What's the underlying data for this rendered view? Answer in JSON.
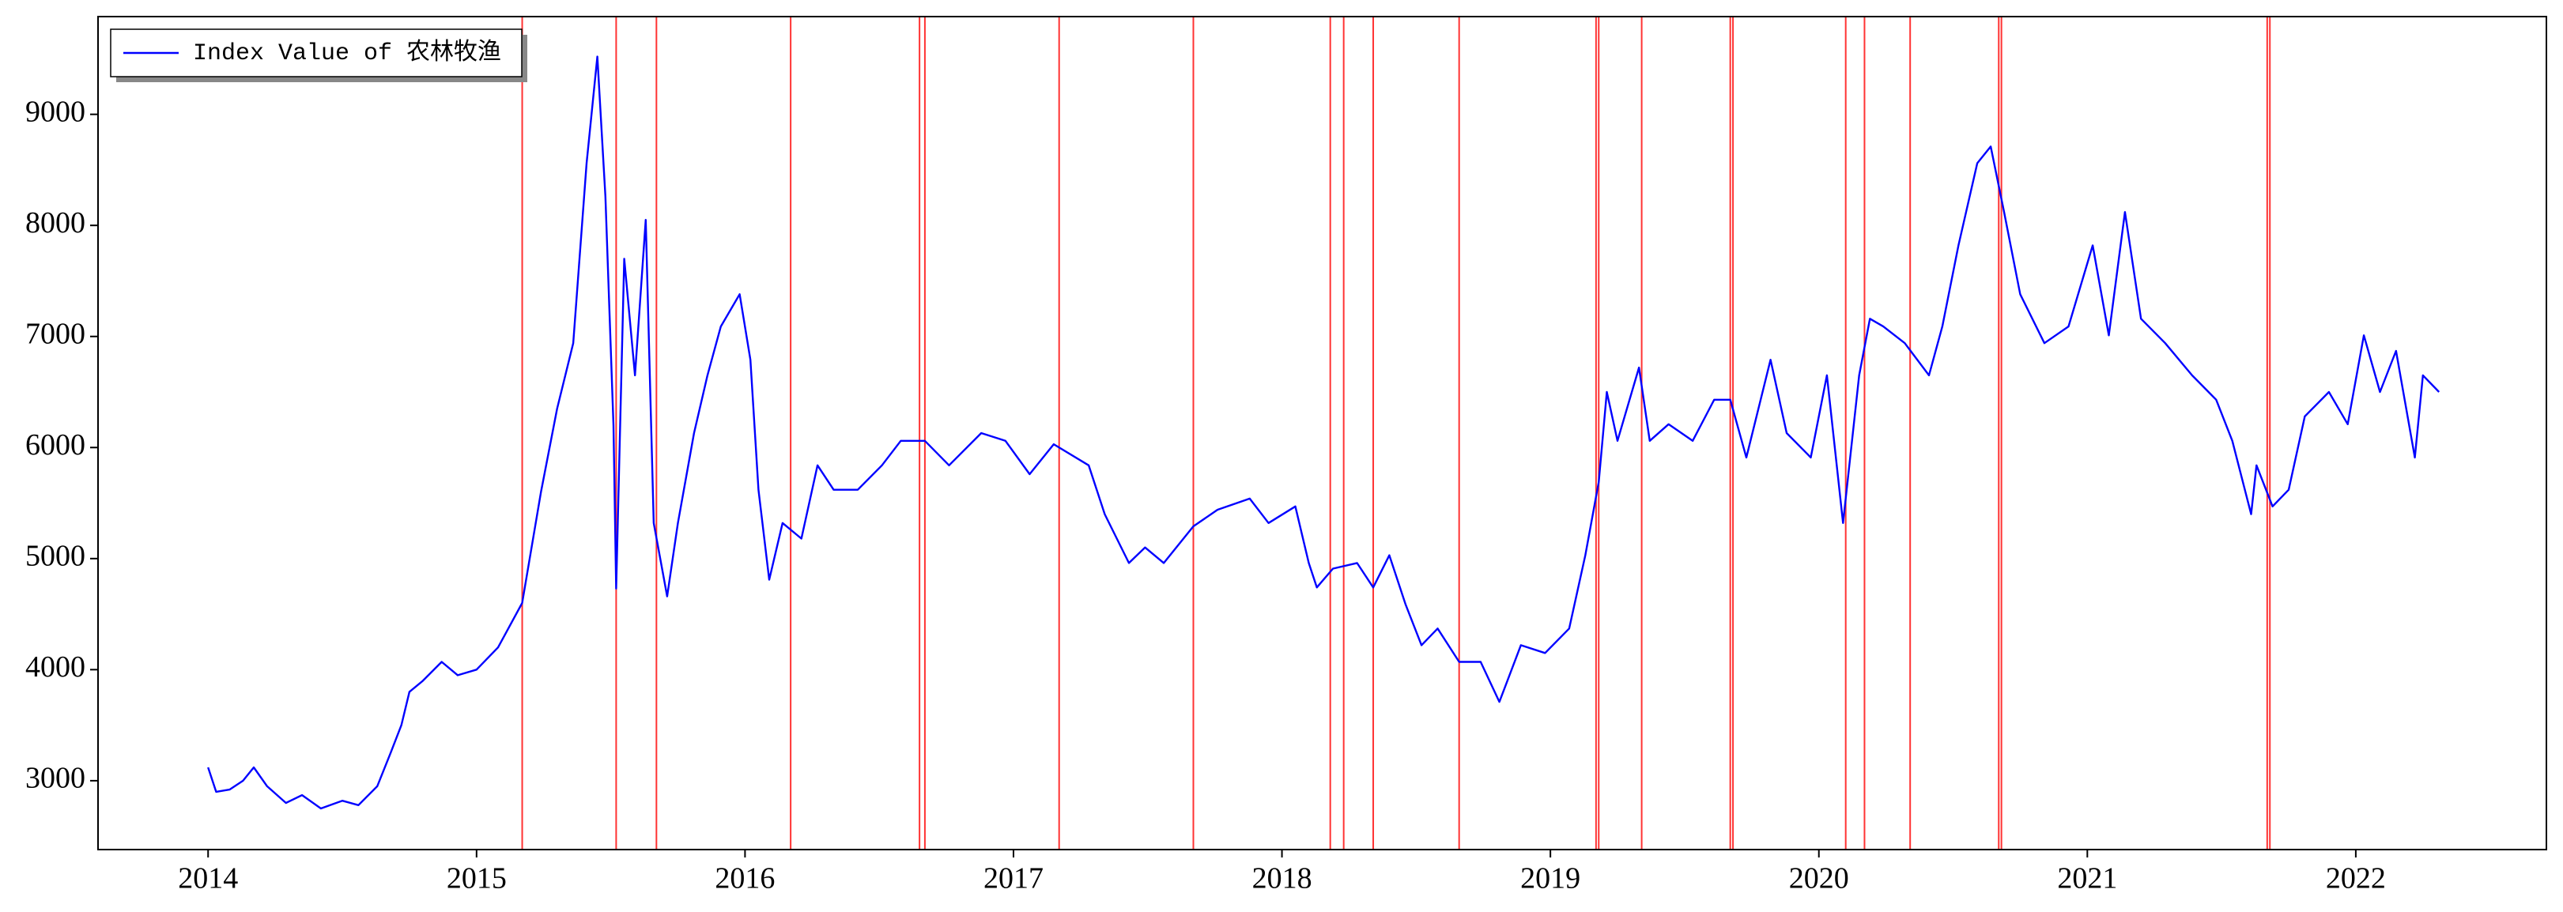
{
  "chart_data": {
    "type": "line",
    "x": [
      2014.0,
      2014.03,
      2014.08,
      2014.13,
      2014.17,
      2014.22,
      2014.29,
      2014.35,
      2014.42,
      2014.5,
      2014.56,
      2014.63,
      2014.68,
      2014.72,
      2014.75,
      2014.8,
      2014.87,
      2014.93,
      2015.0,
      2015.08,
      2015.17,
      2015.24,
      2015.3,
      2015.36,
      2015.41,
      2015.45,
      2015.48,
      2015.51,
      2015.52,
      2015.55,
      2015.59,
      2015.63,
      2015.66,
      2015.71,
      2015.75,
      2015.81,
      2015.86,
      2015.91,
      2015.98,
      2016.02,
      2016.05,
      2016.09,
      2016.14,
      2016.21,
      2016.27,
      2016.33,
      2016.42,
      2016.51,
      2016.58,
      2016.67,
      2016.76,
      2016.88,
      2016.97,
      2017.06,
      2017.15,
      2017.28,
      2017.34,
      2017.43,
      2017.49,
      2017.56,
      2017.67,
      2017.76,
      2017.88,
      2017.95,
      2018.05,
      2018.1,
      2018.13,
      2018.19,
      2018.28,
      2018.34,
      2018.4,
      2018.46,
      2018.52,
      2018.58,
      2018.66,
      2018.74,
      2018.81,
      2018.89,
      2018.98,
      2019.07,
      2019.13,
      2019.18,
      2019.21,
      2019.25,
      2019.33,
      2019.37,
      2019.44,
      2019.53,
      2019.61,
      2019.67,
      2019.73,
      2019.82,
      2019.88,
      2019.97,
      2020.03,
      2020.09,
      2020.15,
      2020.19,
      2020.24,
      2020.32,
      2020.41,
      2020.46,
      2020.52,
      2020.59,
      2020.64,
      2020.69,
      2020.75,
      2020.84,
      2020.93,
      2021.02,
      2021.08,
      2021.14,
      2021.2,
      2021.29,
      2021.39,
      2021.48,
      2021.54,
      2021.61,
      2021.63,
      2021.69,
      2021.75,
      2021.81,
      2021.9,
      2021.97,
      2022.03,
      2022.09,
      2022.15,
      2022.22,
      2022.25,
      2022.31
    ],
    "series": [
      {
        "name": "Index Value of 农林牧渔",
        "color": "#0000ff",
        "values": [
          3120,
          2900,
          2920,
          3000,
          3120,
          2950,
          2800,
          2870,
          2750,
          2820,
          2780,
          2950,
          3250,
          3500,
          3800,
          3900,
          4070,
          3950,
          4000,
          4200,
          4600,
          5600,
          6350,
          6940,
          8560,
          9520,
          8260,
          6200,
          4730,
          7700,
          6650,
          8050,
          5320,
          4660,
          5320,
          6130,
          6650,
          7090,
          7380,
          6790,
          5620,
          4810,
          5320,
          5180,
          5840,
          5620,
          5620,
          5840,
          6060,
          6060,
          5840,
          6130,
          6060,
          5760,
          6030,
          5840,
          5400,
          4960,
          5100,
          4960,
          5290,
          5440,
          5540,
          5320,
          5470,
          4960,
          4740,
          4910,
          4960,
          4740,
          5030,
          4590,
          4220,
          4370,
          4070,
          4070,
          3710,
          4220,
          4150,
          4370,
          5030,
          5690,
          6500,
          6060,
          6720,
          6060,
          6210,
          6060,
          6430,
          6430,
          5910,
          6790,
          6130,
          5910,
          6650,
          5320,
          6650,
          7160,
          7090,
          6940,
          6650,
          7090,
          7820,
          8560,
          8710,
          8120,
          7380,
          6940,
          7090,
          7820,
          7010,
          8120,
          7160,
          6940,
          6650,
          6430,
          6060,
          5400,
          5840,
          5470,
          5620,
          6280,
          6500,
          6210,
          7010,
          6500,
          6870,
          5910,
          6650,
          6500
        ]
      }
    ],
    "vlines": [
      2015.17,
      2015.52,
      2015.67,
      2016.17,
      2016.65,
      2016.67,
      2017.17,
      2017.67,
      2018.18,
      2018.23,
      2018.34,
      2018.66,
      2019.17,
      2019.18,
      2019.34,
      2019.67,
      2019.68,
      2020.1,
      2020.17,
      2020.34,
      2020.67,
      2020.68,
      2021.67,
      2021.68
    ],
    "vline_color": "#ff0000",
    "xlim": [
      2013.59,
      2022.71
    ],
    "xticks": [
      2014,
      2015,
      2016,
      2017,
      2018,
      2019,
      2020,
      2021,
      2022
    ],
    "ylim": [
      2380,
      9880
    ],
    "yticks": [
      3000,
      4000,
      5000,
      6000,
      7000,
      8000,
      9000
    ],
    "legend": "upper-left"
  }
}
